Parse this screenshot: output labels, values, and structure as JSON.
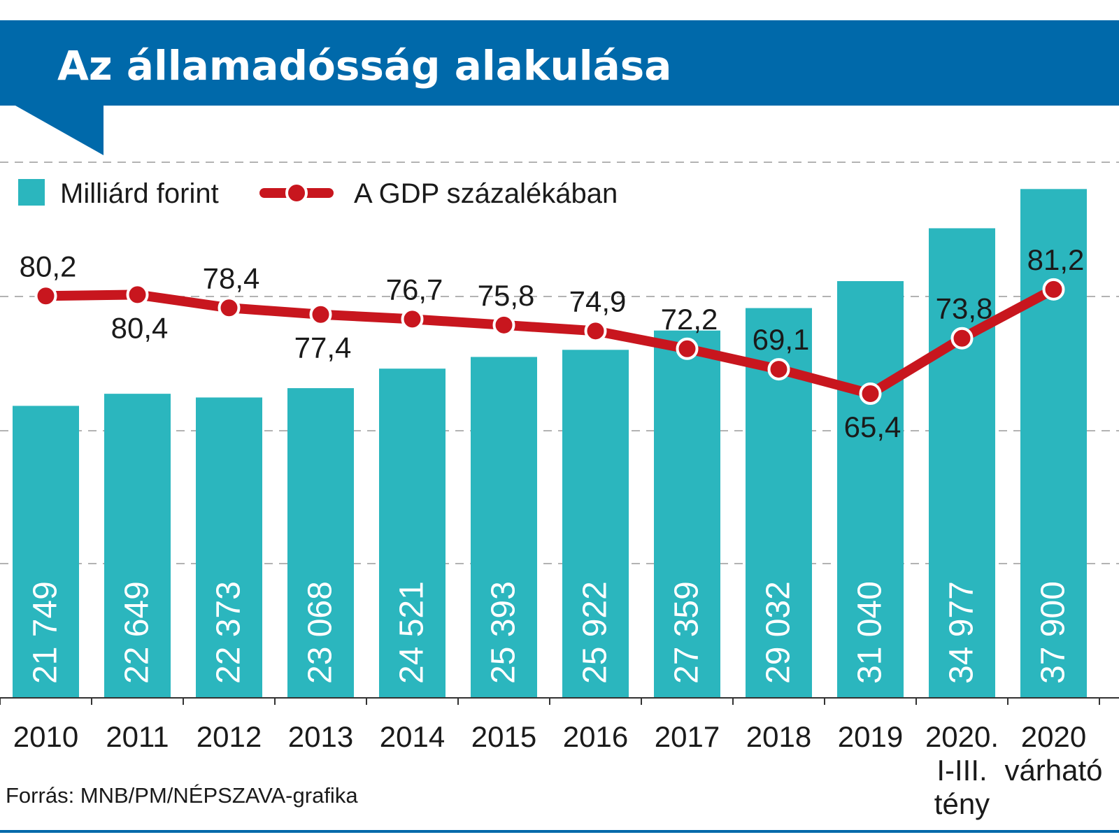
{
  "title": "Az államadósság alakulása",
  "legend": {
    "bars_label": "Milliárd forint",
    "line_label": "A GDP százalékában"
  },
  "source": "Forrás: MNB/PM/NÉPSZAVA-grafika",
  "colors": {
    "header": "#0069aa",
    "bar": "#2bb6be",
    "line": "#c8161e",
    "grid": "#9a9a9a"
  },
  "chart_data": {
    "type": "bar",
    "categories": [
      [
        "2010"
      ],
      [
        "2011"
      ],
      [
        "2012"
      ],
      [
        "2013"
      ],
      [
        "2014"
      ],
      [
        "2015"
      ],
      [
        "2016"
      ],
      [
        "2017"
      ],
      [
        "2018"
      ],
      [
        "2019"
      ],
      [
        "2020.",
        "I-III.",
        "tény"
      ],
      [
        "2020",
        "várható"
      ]
    ],
    "series": [
      {
        "name": "Milliárd forint",
        "type": "bar",
        "values": [
          21749,
          22649,
          22373,
          23068,
          24521,
          25393,
          25922,
          27359,
          29032,
          31040,
          34977,
          37900
        ],
        "labels": [
          "21 749",
          "22 649",
          "22 373",
          "23 068",
          "24 521",
          "25 393",
          "25 922",
          "27 359",
          "29 032",
          "31 040",
          "34 977",
          "37 900"
        ]
      },
      {
        "name": "A GDP százalékában",
        "type": "line",
        "values": [
          80.2,
          80.4,
          78.4,
          77.4,
          76.7,
          75.8,
          74.9,
          72.2,
          69.1,
          65.4,
          73.8,
          81.2
        ],
        "labels": [
          "80,2",
          "80,4",
          "78,4",
          "77,4",
          "76,7",
          "75,8",
          "74,9",
          "72,2",
          "69,1",
          "65,4",
          "73,8",
          "81,2"
        ]
      }
    ],
    "bar_axis_range": [
      0,
      40000
    ],
    "line_axis_range": [
      50,
      90
    ],
    "grid": true
  }
}
